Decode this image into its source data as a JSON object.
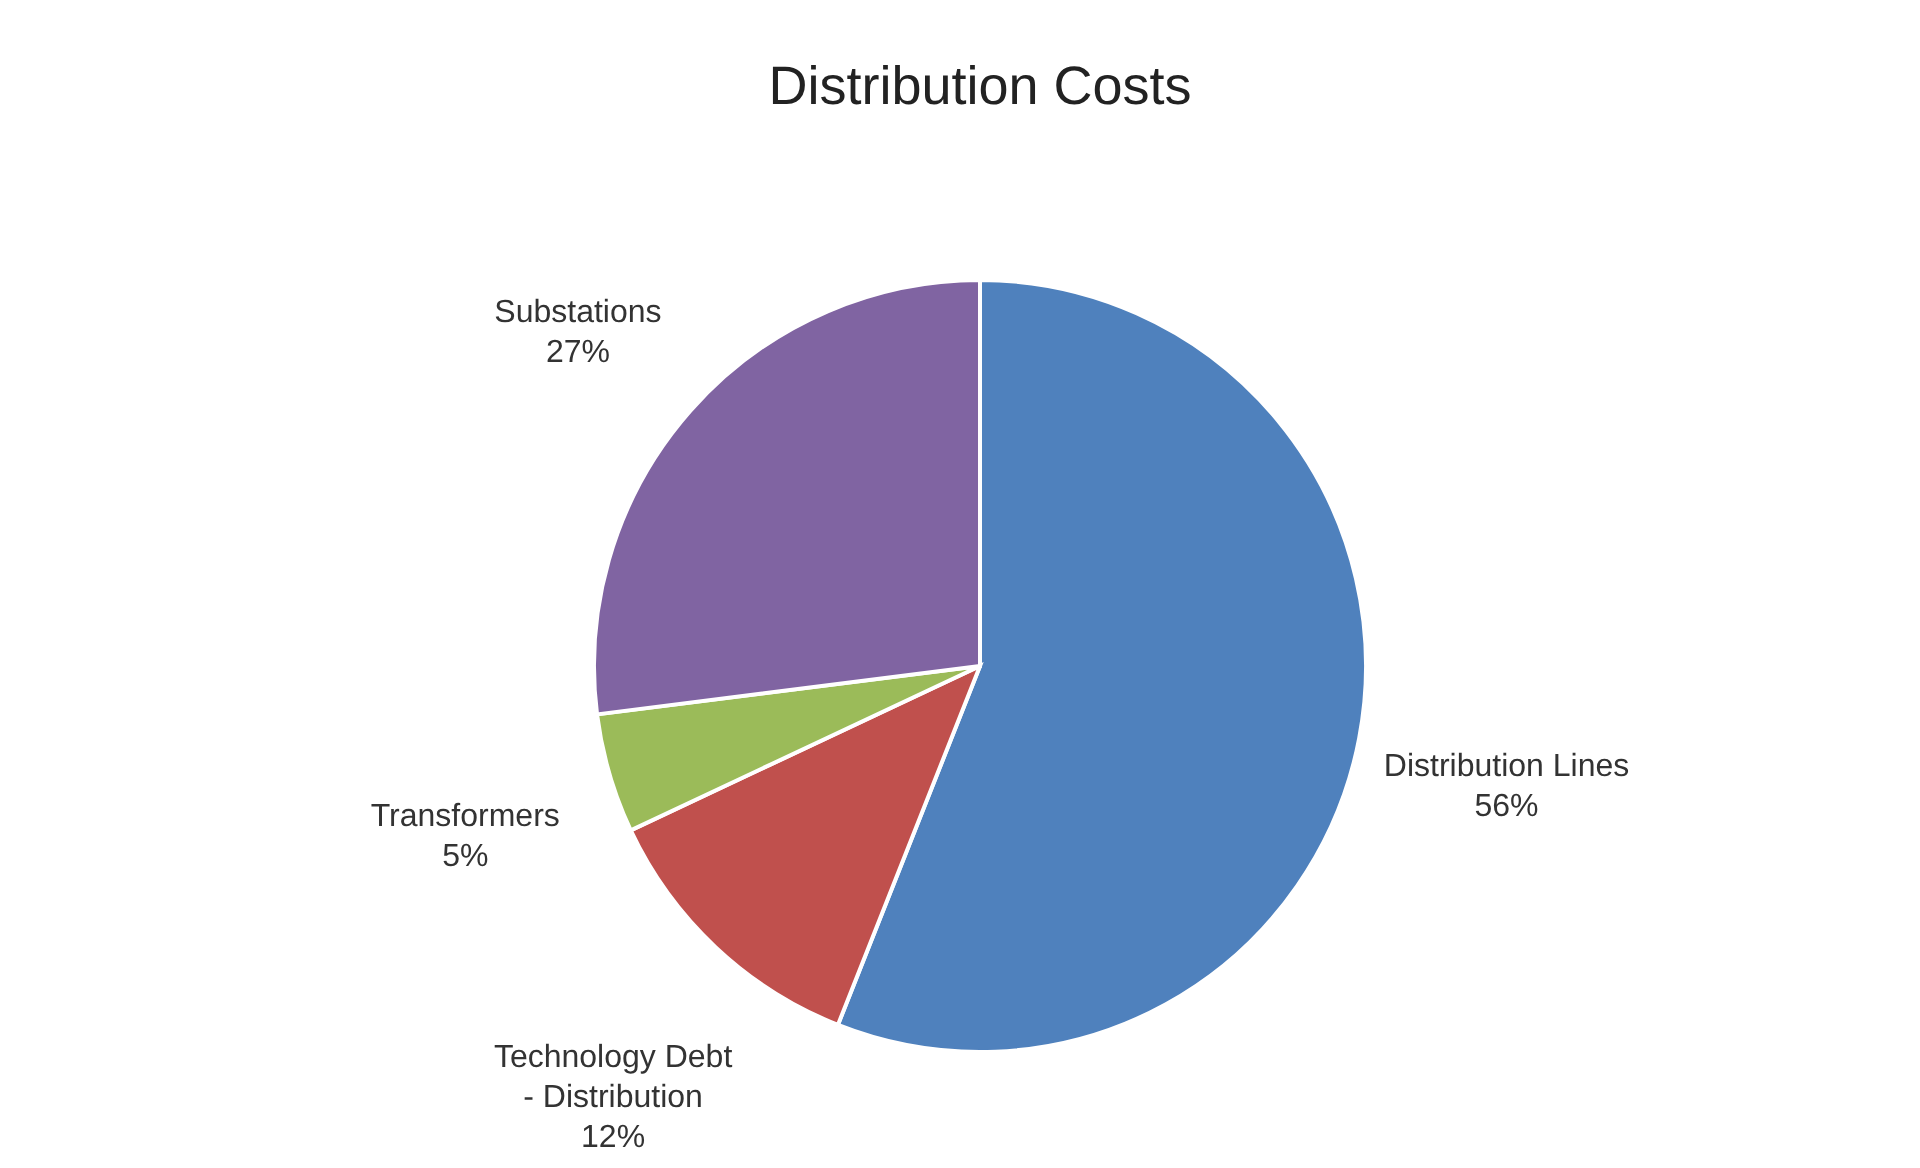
{
  "chart_data": {
    "type": "pie",
    "title": "Distribution Costs",
    "categories": [
      "Distribution Lines",
      "Technology Debt\n- Distribution",
      "Transformers",
      "Substations"
    ],
    "values": [
      56,
      12,
      5,
      27
    ],
    "value_labels": [
      "56%",
      "12%",
      "5%",
      "27%"
    ],
    "colors": [
      "#4f81bd",
      "#c0504d",
      "#9bbb59",
      "#8064a2"
    ]
  }
}
